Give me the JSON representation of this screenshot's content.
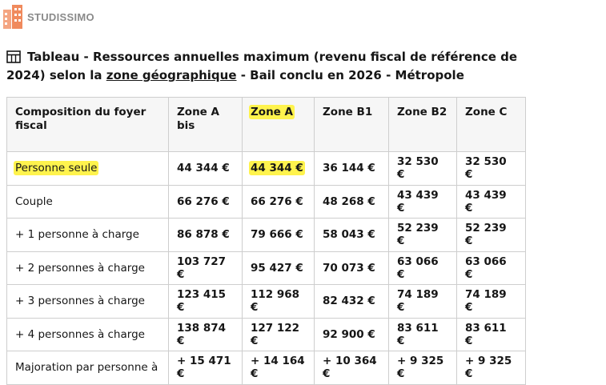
{
  "logo": "STUDISSIMO",
  "title": {
    "before": "Tableau - Ressources annuelles maximum (revenu fiscal de référence de 2024) selon la ",
    "link": "zone géographique",
    "after": " - Bail conclu en 2026 - Métropole"
  },
  "table": {
    "headers": [
      "Composition du foyer fiscal",
      "Zone A bis",
      "Zone A",
      "Zone B1",
      "Zone B2",
      "Zone C"
    ],
    "rows": [
      [
        "Personne seule",
        "44 344 €",
        "44 344 €",
        "36 144 €",
        "32 530 €",
        "32 530 €"
      ],
      [
        "Couple",
        "66 276 €",
        "66 276 €",
        "48 268 €",
        "43 439 €",
        "43 439 €"
      ],
      [
        "+ 1 personne à charge",
        "86 878 €",
        "79 666 €",
        "58 043 €",
        "52 239 €",
        "52 239 €"
      ],
      [
        "+ 2 personnes à charge",
        "103 727 €",
        "95 427 €",
        "70 073 €",
        "63 066 €",
        "63 066 €"
      ],
      [
        "+ 3 personnes à charge",
        "123 415 €",
        "112 968 €",
        "82 432 €",
        "74 189 €",
        "74 189 €"
      ],
      [
        "+ 4 personnes à charge",
        "138 874 €",
        "127 122 €",
        "92 900 €",
        "83 611 €",
        "83 611 €"
      ],
      [
        "Majoration par personne à",
        "+ 15 471 €",
        "+ 14 164 €",
        "+ 10 364 €",
        "+ 9 325 €",
        "+ 9 325 €"
      ]
    ]
  }
}
